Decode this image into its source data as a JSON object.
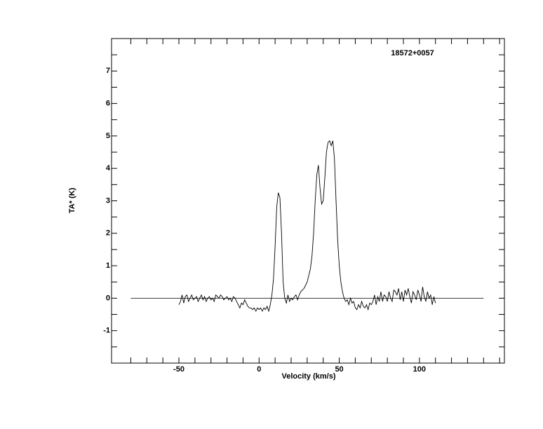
{
  "chart_data": {
    "type": "line",
    "annotation": "18572+0057",
    "xlabel": "Velocity (km/s)",
    "ylabel": "TA* (K)",
    "xlim": [
      -92,
      153
    ],
    "ylim": [
      -2,
      8
    ],
    "xticks": [
      -50,
      0,
      50,
      100
    ],
    "yticks": [
      -1,
      0,
      1,
      2,
      3,
      4,
      5,
      6,
      7
    ],
    "xtick_marks": [
      -80,
      -70,
      -60,
      -50,
      -40,
      -30,
      -20,
      -10,
      0,
      10,
      20,
      30,
      40,
      50,
      60,
      70,
      80,
      90,
      100,
      110,
      120,
      130,
      140,
      150
    ],
    "ytick_marks": [
      -1.5,
      -1,
      -0.5,
      0,
      0.5,
      1,
      1.5,
      2,
      2.5,
      3,
      3.5,
      4,
      4.5,
      5,
      5.5,
      6,
      6.5,
      7,
      7.5
    ],
    "baseline": {
      "x": [
        -80,
        140
      ],
      "value": 0
    },
    "color": "#000000",
    "x": [
      -50,
      -49,
      -48,
      -47,
      -46,
      -45,
      -44,
      -43,
      -42,
      -41,
      -40,
      -39,
      -38,
      -37,
      -36,
      -35,
      -34,
      -33,
      -32,
      -31,
      -30,
      -29,
      -28,
      -27,
      -26,
      -25,
      -24,
      -23,
      -22,
      -21,
      -20,
      -19,
      -18,
      -17,
      -16,
      -15,
      -14,
      -13,
      -12,
      -11,
      -10,
      -9,
      -8,
      -7,
      -6,
      -5,
      -4,
      -3,
      -2,
      -1,
      0,
      1,
      2,
      3,
      4,
      5,
      6,
      7,
      8,
      9,
      10,
      11,
      12,
      13,
      14,
      15,
      16,
      17,
      18,
      19,
      20,
      21,
      22,
      23,
      24,
      25,
      26,
      27,
      28,
      29,
      30,
      31,
      32,
      33,
      34,
      35,
      36,
      37,
      38,
      39,
      40,
      41,
      42,
      43,
      44,
      45,
      46,
      47,
      48,
      49,
      50,
      51,
      52,
      53,
      54,
      55,
      56,
      57,
      58,
      59,
      60,
      61,
      62,
      63,
      64,
      65,
      66,
      67,
      68,
      69,
      70,
      71,
      72,
      73,
      74,
      75,
      76,
      77,
      78,
      79,
      80,
      81,
      82,
      83,
      84,
      85,
      86,
      87,
      88,
      89,
      90,
      91,
      92,
      93,
      94,
      95,
      96,
      97,
      98,
      99,
      100,
      101,
      102,
      103,
      104,
      105,
      106,
      107,
      108,
      109,
      110
    ],
    "values": [
      -0.2,
      -0.1,
      0.1,
      -0.15,
      0.05,
      0.1,
      -0.1,
      0.0,
      0.1,
      -0.05,
      0.0,
      0.05,
      -0.1,
      0.0,
      0.1,
      -0.05,
      0.05,
      -0.1,
      0.0,
      0.05,
      -0.05,
      0.0,
      -0.1,
      0.1,
      0.05,
      0.0,
      0.1,
      0.05,
      -0.05,
      0.0,
      0.05,
      -0.05,
      0.0,
      -0.1,
      0.05,
      0.0,
      -0.1,
      -0.2,
      -0.3,
      -0.15,
      -0.2,
      -0.05,
      -0.15,
      -0.25,
      -0.3,
      -0.3,
      -0.35,
      -0.3,
      -0.4,
      -0.3,
      -0.35,
      -0.3,
      -0.4,
      -0.3,
      -0.35,
      -0.25,
      -0.4,
      -0.2,
      0.1,
      0.6,
      1.6,
      2.8,
      3.25,
      3.1,
      2.0,
      0.5,
      0.0,
      -0.15,
      0.1,
      -0.1,
      0.0,
      -0.05,
      0.05,
      0.1,
      -0.05,
      0.1,
      0.2,
      0.25,
      0.3,
      0.4,
      0.5,
      0.7,
      0.9,
      1.3,
      2.0,
      3.0,
      3.8,
      4.1,
      3.4,
      2.9,
      3.0,
      3.7,
      4.5,
      4.8,
      4.85,
      4.7,
      4.85,
      4.3,
      3.0,
      1.8,
      1.0,
      0.5,
      0.2,
      0.0,
      -0.1,
      -0.05,
      -0.2,
      0.0,
      -0.15,
      -0.1,
      -0.3,
      -0.35,
      -0.2,
      -0.3,
      -0.1,
      -0.25,
      -0.3,
      -0.2,
      -0.35,
      -0.15,
      -0.2,
      -0.1,
      0.1,
      -0.2,
      0.05,
      -0.1,
      0.2,
      -0.1,
      0.1,
      0.05,
      -0.1,
      0.2,
      0.0,
      -0.1,
      0.25,
      0.2,
      0.1,
      0.3,
      -0.05,
      0.2,
      -0.1,
      0.25,
      0.1,
      0.3,
      0.05,
      -0.15,
      0.2,
      0.1,
      -0.05,
      0.25,
      0.1,
      -0.1,
      0.35,
      0.05,
      -0.1,
      0.2,
      0.0,
      0.1,
      -0.2,
      0.05,
      -0.15
    ]
  }
}
